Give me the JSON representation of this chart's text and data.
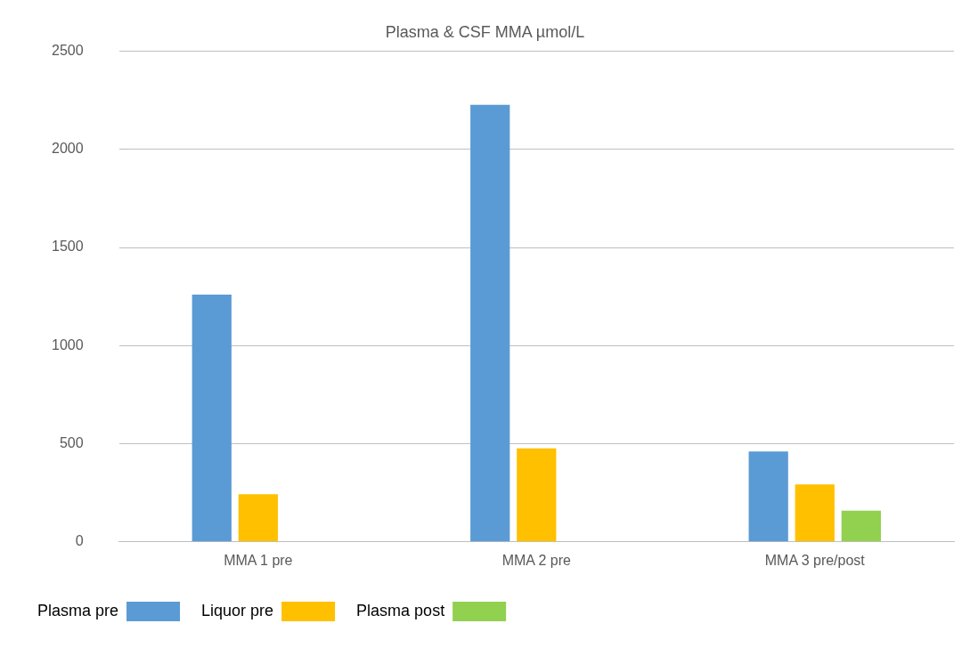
{
  "chart_data": {
    "type": "bar",
    "title": "Plasma & CSF MMA µmol/L",
    "categories": [
      "MMA 1 pre",
      "MMA 2 pre",
      "MMA 3 pre/post"
    ],
    "series": [
      {
        "name": "Plasma pre",
        "color": "#5b9bd5",
        "values": [
          1260,
          2227,
          461
        ]
      },
      {
        "name": "Liquor pre",
        "color": "#ffc000",
        "values": [
          243,
          476,
          293
        ]
      },
      {
        "name": "Plasma post",
        "color": "#92d050",
        "values": [
          null,
          null,
          159
        ]
      }
    ],
    "ylim": [
      0,
      2500
    ],
    "yticks": [
      0,
      500,
      1000,
      1500,
      2000,
      2500
    ],
    "grid": "y",
    "legend": "bottom left"
  }
}
